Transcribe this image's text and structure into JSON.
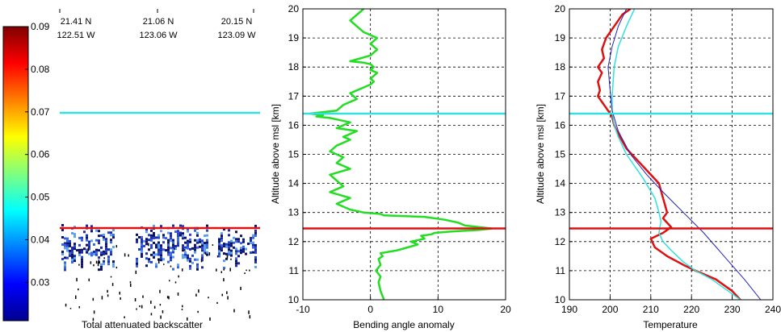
{
  "colorbar": {
    "ticks": [
      "0.09",
      "0.08",
      "0.07",
      "0.06",
      "0.05",
      "0.04",
      "0.03"
    ],
    "tick_values": [
      0.09,
      0.08,
      0.07,
      0.06,
      0.05,
      0.04,
      0.03
    ],
    "range": [
      0.021,
      0.09
    ]
  },
  "panel1": {
    "xlabel": "Total attenuated backscatter",
    "locations": [
      {
        "lat": "21.41 N",
        "lon": "122.51 W"
      },
      {
        "lat": "21.06 N",
        "lon": "123.06 W"
      },
      {
        "lat": "20.15 N",
        "lon": "123.09 W"
      }
    ]
  },
  "panel2": {
    "xlabel": "Bending angle anomaly",
    "ylabel": "Altitude above msl [km]"
  },
  "panel3": {
    "xlabel": "Temperature",
    "ylabel": "Altitude above msl [km]"
  },
  "colors": {
    "green": "#22dd22",
    "cyan": "#33e0e0",
    "red": "#dd1111",
    "blue": "#2222bb",
    "grid": "#000000"
  },
  "chart_data": [
    {
      "type": "heatmap",
      "xlabel": "Total attenuated backscatter",
      "reference_lines": {
        "cyan_km": 16.4,
        "red_km": 12.45
      },
      "cloud_layer_km": [
        11.0,
        12.6
      ]
    },
    {
      "type": "line",
      "xlabel": "Bending angle anomaly",
      "ylabel": "Altitude above msl [km]",
      "xlim": [
        -10,
        20
      ],
      "ylim": [
        10,
        20
      ],
      "x_ticks": [
        "-10",
        "0",
        "10",
        "20"
      ],
      "y_ticks": [
        "10",
        "11",
        "12",
        "13",
        "14",
        "15",
        "16",
        "17",
        "18",
        "19",
        "20"
      ],
      "grid": true,
      "reference_lines": {
        "cyan_km": 16.4,
        "red_km": 12.45
      },
      "series": [
        {
          "color": "green",
          "x": [
            2,
            1.5,
            1.2,
            1.5,
            0.8,
            1.5,
            1.2,
            1.8,
            1.5,
            4,
            5.5,
            7,
            6,
            8,
            7.5,
            9,
            9.5,
            12,
            16,
            18,
            14,
            13,
            11,
            8,
            2,
            1.5,
            -1,
            -3,
            -5,
            -3,
            -6,
            -4,
            -5,
            -6,
            -3,
            -5,
            -4,
            -6,
            -5,
            -3,
            -4,
            -2,
            -5,
            -4,
            -3,
            -5,
            -6,
            -8,
            -7,
            -9,
            -5,
            -4,
            -2,
            -3,
            -1,
            0,
            0.5,
            0,
            1,
            0,
            0.5,
            0,
            -1,
            -3,
            0,
            1,
            0,
            1,
            -1,
            -3,
            -1
          ],
          "y": [
            10.0,
            10.3,
            10.6,
            10.8,
            11.0,
            11.2,
            11.4,
            11.5,
            11.6,
            11.7,
            11.8,
            11.9,
            12.0,
            12.1,
            12.2,
            12.25,
            12.3,
            12.35,
            12.4,
            12.45,
            12.55,
            12.65,
            12.75,
            12.85,
            12.9,
            12.95,
            13.0,
            13.1,
            13.3,
            13.5,
            13.7,
            13.9,
            14.1,
            14.3,
            14.5,
            14.7,
            14.9,
            15.1,
            15.3,
            15.5,
            15.6,
            15.8,
            15.9,
            16.0,
            16.1,
            16.2,
            16.25,
            16.3,
            16.35,
            16.4,
            16.5,
            16.7,
            16.9,
            17.1,
            17.3,
            17.4,
            17.5,
            17.6,
            17.8,
            17.9,
            18.0,
            18.1,
            18.15,
            18.2,
            18.4,
            18.6,
            18.8,
            19.0,
            19.2,
            19.6,
            20.0
          ]
        }
      ]
    },
    {
      "type": "line",
      "xlabel": "Temperature",
      "ylabel": "Altitude above msl [km]",
      "xlim": [
        190,
        240
      ],
      "ylim": [
        10,
        20
      ],
      "x_ticks": [
        "190",
        "200",
        "210",
        "220",
        "230",
        "240"
      ],
      "y_ticks": [
        "10",
        "11",
        "12",
        "13",
        "14",
        "15",
        "16",
        "17",
        "18",
        "19",
        "20"
      ],
      "grid": true,
      "reference_lines": {
        "cyan_km": 16.4,
        "red_km": 12.45
      },
      "series": [
        {
          "color": "red",
          "x": [
            232,
            230,
            226,
            221,
            218,
            214,
            211,
            210,
            213,
            215,
            213,
            214,
            213,
            212,
            208,
            204,
            202,
            201,
            200.5,
            199,
            198,
            197,
            197.5,
            197,
            198,
            197,
            198.5,
            198,
            199,
            201,
            203,
            205
          ],
          "y": [
            10.0,
            10.3,
            10.7,
            11.0,
            11.2,
            11.5,
            11.8,
            12.1,
            12.3,
            12.5,
            12.8,
            13.0,
            13.5,
            14.0,
            14.6,
            15.2,
            15.7,
            16.0,
            16.3,
            16.6,
            16.8,
            17.0,
            17.2,
            17.5,
            17.8,
            18.0,
            18.3,
            18.6,
            19.0,
            19.4,
            19.8,
            20.0
          ]
        },
        {
          "color": "cyan",
          "x": [
            232,
            229,
            225,
            221,
            218,
            215,
            213,
            212,
            212.5,
            212,
            211,
            208,
            204,
            202,
            201,
            200.5,
            200.5,
            201,
            202,
            204,
            206
          ],
          "y": [
            10.0,
            10.3,
            10.7,
            11.0,
            11.3,
            11.7,
            12.0,
            12.3,
            12.7,
            13.0,
            13.5,
            14.2,
            15.0,
            15.6,
            16.0,
            16.5,
            17.0,
            18.0,
            18.7,
            19.4,
            20.0
          ]
        },
        {
          "color": "blue",
          "x": [
            237,
            233,
            228,
            223,
            218,
            213,
            209,
            205,
            202,
            200.5,
            200,
            199.5,
            200.5,
            202,
            204
          ],
          "y": [
            10.0,
            10.7,
            11.5,
            12.3,
            13.0,
            13.7,
            14.3,
            15.0,
            15.8,
            16.5,
            17.2,
            18.0,
            18.7,
            19.4,
            20.0
          ]
        }
      ]
    }
  ]
}
